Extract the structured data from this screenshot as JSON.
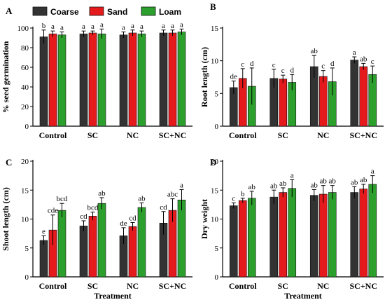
{
  "legend": [
    {
      "name": "Coarse",
      "color": "#333333"
    },
    {
      "name": "Sand",
      "color": "#e41a1c"
    },
    {
      "name": "Loam",
      "color": "#2ca02c"
    }
  ],
  "chart_data": [
    {
      "panel": "A",
      "type": "bar",
      "categories": [
        "Control",
        "SC",
        "NC",
        "SC+NC"
      ],
      "ylabel": "% seed germination",
      "xlabel": "",
      "ylim": [
        0,
        100
      ],
      "yticks": [
        0,
        20,
        40,
        60,
        80,
        100
      ],
      "series": [
        {
          "name": "Coarse",
          "values": [
            91,
            94,
            93,
            95
          ],
          "errors": [
            7,
            3,
            3,
            3
          ],
          "sig": [
            "b",
            "a",
            "a",
            "a"
          ]
        },
        {
          "name": "Sand",
          "values": [
            94,
            95,
            95,
            95
          ],
          "errors": [
            3,
            2,
            3,
            3
          ],
          "sig": [
            "a",
            "a",
            "a",
            "a"
          ]
        },
        {
          "name": "Loam",
          "values": [
            93,
            94,
            94,
            96
          ],
          "errors": [
            3,
            5,
            3,
            3
          ],
          "sig": [
            "a",
            "a",
            "a",
            "a"
          ]
        }
      ]
    },
    {
      "panel": "B",
      "type": "bar",
      "categories": [
        "Control",
        "SC",
        "NC",
        "SC+NC"
      ],
      "ylabel": "Root length (cm)",
      "xlabel": "",
      "ylim": [
        0,
        15
      ],
      "yticks": [
        0,
        5,
        10,
        15
      ],
      "series": [
        {
          "name": "Coarse",
          "values": [
            5.9,
            7.3,
            9.1,
            10.1
          ],
          "errors": [
            1.0,
            1.4,
            1.7,
            0.5
          ],
          "sig": [
            "de",
            "c",
            "ab",
            "a"
          ]
        },
        {
          "name": "Sand",
          "values": [
            7.3,
            7.2,
            7.6,
            9.1
          ],
          "errors": [
            1.5,
            0.6,
            0.9,
            0.5
          ],
          "sig": [
            "c",
            "c",
            "c",
            "ab"
          ]
        },
        {
          "name": "Loam",
          "values": [
            6.1,
            6.7,
            6.8,
            7.9
          ],
          "errors": [
            2.8,
            1.2,
            2.1,
            1.3
          ],
          "sig": [
            "d",
            "d",
            "d",
            "c"
          ]
        }
      ]
    },
    {
      "panel": "C",
      "type": "bar",
      "categories": [
        "Control",
        "SC",
        "NC",
        "SC+NC"
      ],
      "ylabel": "Shoot length (cm)",
      "xlabel": "Treatment",
      "ylim": [
        0,
        20
      ],
      "yticks": [
        0,
        5,
        10,
        15,
        20
      ],
      "series": [
        {
          "name": "Coarse",
          "values": [
            6.3,
            8.8,
            7.1,
            9.3
          ],
          "errors": [
            0.8,
            0.9,
            1.4,
            2.0
          ],
          "sig": [
            "e",
            "cd",
            "de",
            "cd"
          ]
        },
        {
          "name": "Sand",
          "values": [
            8.1,
            10.5,
            8.7,
            11.5
          ],
          "errors": [
            2.6,
            0.7,
            0.7,
            2.0
          ],
          "sig": [
            "cde",
            "bcd",
            "cd",
            "abc"
          ]
        },
        {
          "name": "Loam",
          "values": [
            11.5,
            12.7,
            12.0,
            13.3
          ],
          "errors": [
            1.2,
            1.0,
            0.8,
            1.8
          ],
          "sig": [
            "bcd",
            "ab",
            "ab",
            "a"
          ]
        }
      ]
    },
    {
      "panel": "D",
      "type": "bar",
      "categories": [
        "Control",
        "SC",
        "NC",
        "SC+NC"
      ],
      "ylabel": "Dry weight",
      "xlabel": "Treatment",
      "ylim": [
        0,
        20
      ],
      "yticks": [
        0,
        5,
        10,
        15,
        20
      ],
      "series": [
        {
          "name": "Coarse",
          "values": [
            12.3,
            13.8,
            14.1,
            14.6
          ],
          "errors": [
            0.5,
            1.2,
            1.0,
            1.0
          ],
          "sig": [
            "c",
            "ab",
            "ab",
            "ab"
          ]
        },
        {
          "name": "Sand",
          "values": [
            13.2,
            14.6,
            14.3,
            15.2
          ],
          "errors": [
            0.4,
            0.8,
            1.5,
            0.8
          ],
          "sig": [
            "b",
            "ab",
            "ab",
            "ab"
          ]
        },
        {
          "name": "Loam",
          "values": [
            13.6,
            15.3,
            14.6,
            16.0
          ],
          "errors": [
            1.2,
            1.5,
            1.2,
            1.5
          ],
          "sig": [
            "ab",
            "a",
            "ab",
            "a"
          ]
        }
      ]
    }
  ]
}
